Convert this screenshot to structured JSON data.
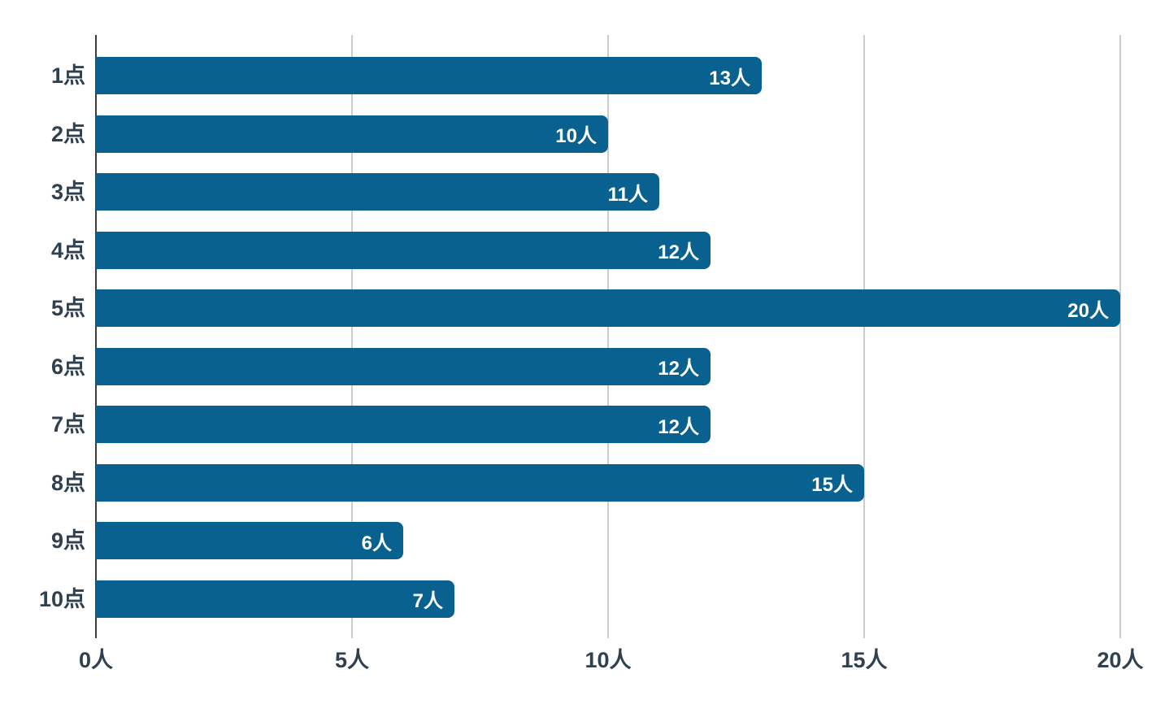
{
  "chart_data": {
    "type": "bar",
    "orientation": "horizontal",
    "title": "",
    "categories": [
      "1点",
      "2点",
      "3点",
      "4点",
      "5点",
      "6点",
      "7点",
      "8点",
      "9点",
      "10点"
    ],
    "values": [
      13,
      10,
      11,
      12,
      20,
      12,
      12,
      15,
      6,
      7
    ],
    "value_labels": [
      "13人",
      "10人",
      "11人",
      "12人",
      "20人",
      "12人",
      "12人",
      "15人",
      "6人",
      "7人"
    ],
    "unit": "人",
    "xlabel": "",
    "ylabel": "",
    "xlim": [
      0,
      20
    ],
    "x_ticks": [
      0,
      5,
      10,
      15,
      20
    ],
    "x_tick_labels": [
      "0人",
      "5人",
      "10人",
      "15人",
      "20人"
    ],
    "grid": "vertical-gridlines-on",
    "legend": "none",
    "colors": {
      "bar": "#09618f",
      "value_text": "#ffffff",
      "label_text": "#2f4050",
      "gridline": "#cccccc",
      "axis_line": "#3d3d3d",
      "background": "#ffffff"
    }
  }
}
